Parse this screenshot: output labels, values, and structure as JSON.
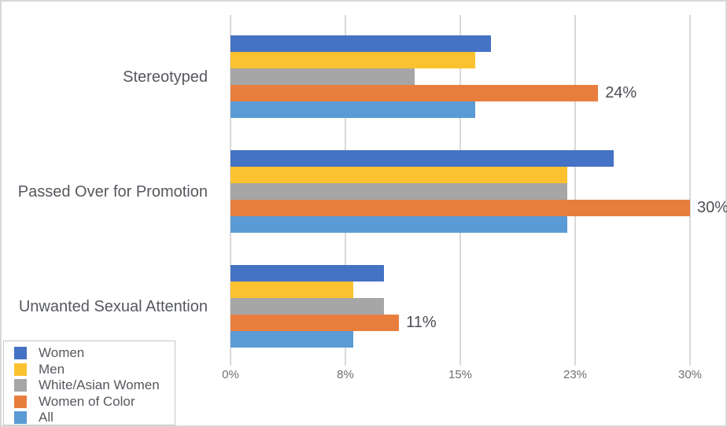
{
  "window": {
    "background": "#FFFFFF",
    "border_color": "#D8D8D8"
  },
  "chart_data": {
    "type": "bar",
    "orientation": "horizontal",
    "title": "",
    "categories": [
      "Stereotyped",
      "Passed Over for Promotion",
      "Unwanted Sexual Attention"
    ],
    "series": [
      {
        "name": "Women",
        "color": "#4472C4",
        "values": [
          17,
          25,
          10
        ]
      },
      {
        "name": "Men",
        "color": "#FCC12E",
        "values": [
          16,
          22,
          8
        ]
      },
      {
        "name": "White/Asian Women",
        "color": "#A6A6A6",
        "values": [
          12,
          22,
          10
        ]
      },
      {
        "name": "Women of Color",
        "color": "#E87E3E",
        "values": [
          24,
          30,
          11
        ],
        "data_labels": [
          "24%",
          "30%",
          "11%"
        ]
      },
      {
        "name": "All",
        "color": "#5B9BD5",
        "values": [
          16,
          22,
          8
        ]
      }
    ],
    "x_axis": {
      "tick_labels": [
        "0%",
        "8%",
        "15%",
        "23%",
        "30%"
      ],
      "tick_values": [
        0,
        7.5,
        15,
        22.5,
        30
      ],
      "range": [
        0,
        30
      ],
      "unit": "%"
    },
    "grid": true,
    "legend": {
      "position": "bottom-left",
      "entries": [
        "Women",
        "Men",
        "White/Asian Women",
        "Women of Color",
        "All"
      ]
    }
  },
  "styles": {
    "gridline_color": "#D9D9D9",
    "category_label_color": "#55585E",
    "axis_label_color": "#6F6F6F",
    "data_label_color": "#4B4E54",
    "legend_text_color": "#55585E",
    "legend_border_color": "#C6C6C6"
  }
}
